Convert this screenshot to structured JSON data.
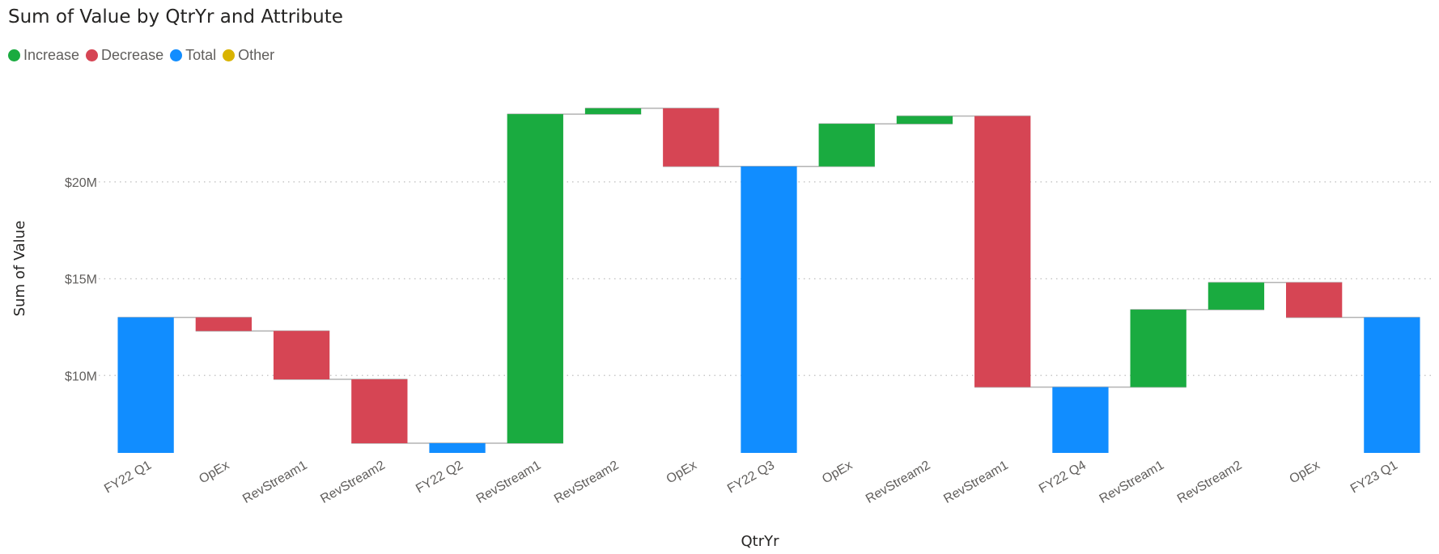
{
  "chart_data": {
    "type": "bar",
    "subtype": "waterfall",
    "title": "Sum of Value by QtrYr and Attribute",
    "xlabel": "QtrYr",
    "ylabel": "Sum of Value",
    "legend": {
      "placement": "top-left",
      "entries": [
        {
          "name": "Increase",
          "color": "#1aab40"
        },
        {
          "name": "Decrease",
          "color": "#d64554"
        },
        {
          "name": "Total",
          "color": "#118dff"
        },
        {
          "name": "Other",
          "color": "#d9b300"
        }
      ]
    },
    "y_ticks": [
      "$10M",
      "$15M",
      "$20M"
    ],
    "y_tick_values": [
      10,
      15,
      20
    ],
    "y_unit": "$M",
    "ylim": [
      6.0,
      24.8
    ],
    "grid": true,
    "categories": [
      "FY22 Q1",
      "OpEx",
      "RevStream1",
      "RevStream2",
      "FY22 Q2",
      "RevStream1",
      "RevStream2",
      "OpEx",
      "FY22 Q3",
      "OpEx",
      "RevStream2",
      "RevStream1",
      "FY22 Q4",
      "RevStream1",
      "RevStream2",
      "OpEx",
      "FY23 Q1"
    ],
    "bars": [
      {
        "kind": "Total",
        "start": 6.0,
        "end": 13.0
      },
      {
        "kind": "Decrease",
        "start": 13.0,
        "end": 12.3
      },
      {
        "kind": "Decrease",
        "start": 12.3,
        "end": 9.8
      },
      {
        "kind": "Decrease",
        "start": 9.8,
        "end": 6.5
      },
      {
        "kind": "Total",
        "start": 6.0,
        "end": 6.5
      },
      {
        "kind": "Increase",
        "start": 6.5,
        "end": 23.5
      },
      {
        "kind": "Increase",
        "start": 23.5,
        "end": 23.8
      },
      {
        "kind": "Decrease",
        "start": 23.8,
        "end": 20.8
      },
      {
        "kind": "Total",
        "start": 6.0,
        "end": 20.8
      },
      {
        "kind": "Increase",
        "start": 20.8,
        "end": 23.0
      },
      {
        "kind": "Increase",
        "start": 23.0,
        "end": 23.4
      },
      {
        "kind": "Decrease",
        "start": 23.4,
        "end": 9.4
      },
      {
        "kind": "Total",
        "start": 6.0,
        "end": 9.4
      },
      {
        "kind": "Increase",
        "start": 9.4,
        "end": 13.4
      },
      {
        "kind": "Increase",
        "start": 13.4,
        "end": 14.8
      },
      {
        "kind": "Decrease",
        "start": 14.8,
        "end": 13.0
      },
      {
        "kind": "Total",
        "start": 6.0,
        "end": 13.0
      }
    ]
  }
}
